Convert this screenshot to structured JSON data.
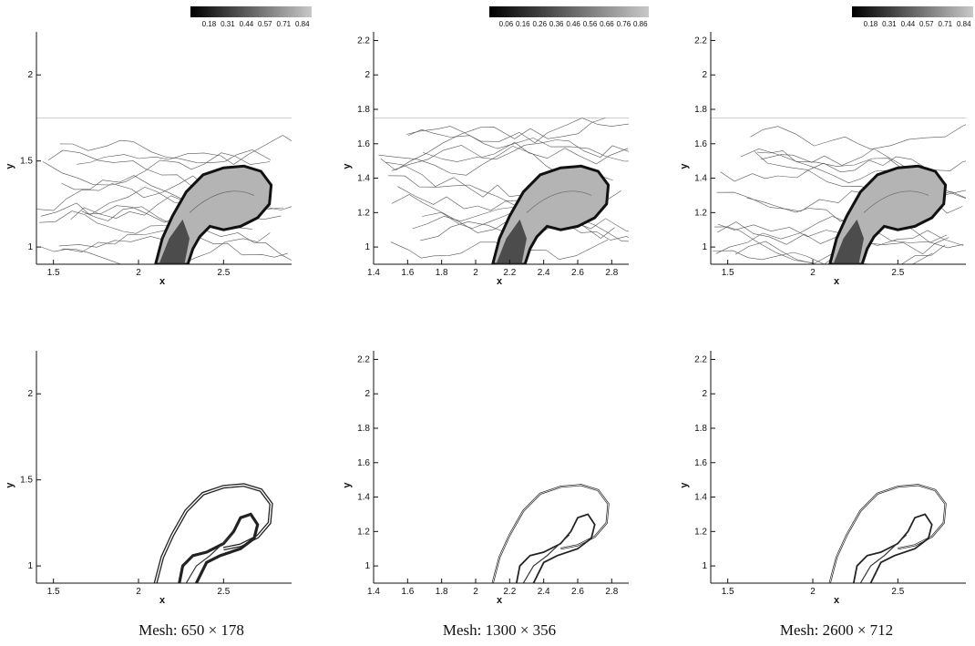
{
  "chart_data": [
    {
      "type": "contour",
      "panel": "top-left",
      "xlabel": "x",
      "ylabel": "y",
      "xlim": [
        1.4,
        2.9
      ],
      "ylim": [
        0.9,
        2.25
      ],
      "xticks": [
        1.5,
        2,
        2.5
      ],
      "yticks": [
        1,
        1.5,
        2
      ],
      "colorbar": [
        "0.18",
        "0.31",
        "0.44",
        "0.57",
        "0.71",
        "0.84"
      ]
    },
    {
      "type": "contour",
      "panel": "top-middle",
      "xlabel": "x",
      "ylabel": "y",
      "xlim": [
        1.4,
        2.9
      ],
      "ylim": [
        0.9,
        2.25
      ],
      "xticks": [
        1.4,
        1.6,
        1.8,
        2,
        2.2,
        2.4,
        2.6,
        2.8
      ],
      "yticks": [
        1,
        1.2,
        1.4,
        1.6,
        1.8,
        2,
        2.2
      ],
      "colorbar": [
        "0.06",
        "0.16",
        "0.26",
        "0.36",
        "0.46",
        "0.56",
        "0.66",
        "0.76",
        "0.86"
      ]
    },
    {
      "type": "contour",
      "panel": "top-right",
      "xlabel": "x",
      "ylabel": "y",
      "xlim": [
        1.4,
        2.9
      ],
      "ylim": [
        0.9,
        2.25
      ],
      "xticks": [
        1.5,
        2,
        2.5
      ],
      "yticks": [
        1,
        1.2,
        1.4,
        1.6,
        1.8,
        2,
        2.2
      ],
      "colorbar": [
        "0.18",
        "0.31",
        "0.44",
        "0.57",
        "0.71",
        "0.84"
      ]
    },
    {
      "type": "contour",
      "panel": "bottom-left",
      "xlabel": "x",
      "ylabel": "y",
      "xlim": [
        1.4,
        2.9
      ],
      "ylim": [
        0.9,
        2.25
      ],
      "xticks": [
        1.5,
        2,
        2.5
      ],
      "yticks": [
        1,
        1.5,
        2
      ]
    },
    {
      "type": "contour",
      "panel": "bottom-middle",
      "xlabel": "x",
      "ylabel": "y",
      "xlim": [
        1.4,
        2.9
      ],
      "ylim": [
        0.9,
        2.25
      ],
      "xticks": [
        1.4,
        1.6,
        1.8,
        2,
        2.2,
        2.4,
        2.6,
        2.8
      ],
      "yticks": [
        1,
        1.2,
        1.4,
        1.6,
        1.8,
        2,
        2.2
      ]
    },
    {
      "type": "contour",
      "panel": "bottom-right",
      "xlabel": "x",
      "ylabel": "y",
      "xlim": [
        1.4,
        2.9
      ],
      "ylim": [
        0.9,
        2.25
      ],
      "xticks": [
        1.5,
        2,
        2.5
      ],
      "yticks": [
        1,
        1.2,
        1.4,
        1.6,
        1.8,
        2,
        2.2
      ]
    }
  ],
  "captions": [
    "Mesh: 650 × 178",
    "Mesh: 1300 × 356",
    "Mesh: 2600 × 712"
  ],
  "colors": {
    "shaded": "#b4b4b4",
    "outline": "#111111",
    "contour": "#555555"
  }
}
